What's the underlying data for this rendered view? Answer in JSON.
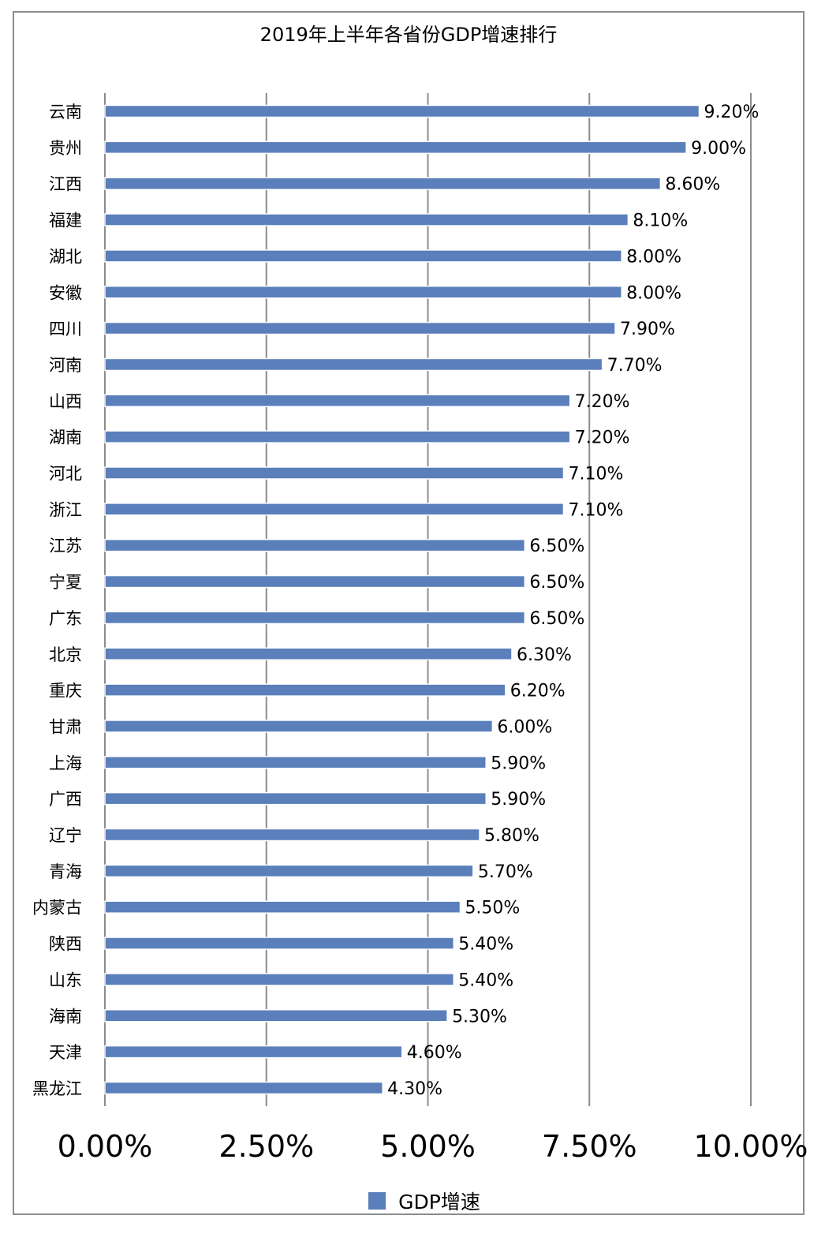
{
  "chart_data": {
    "type": "bar",
    "orientation": "horizontal",
    "title": "2019年上半年各省份GDP增速排行",
    "categories": [
      "云南",
      "贵州",
      "江西",
      "福建",
      "湖北",
      "安徽",
      "四川",
      "河南",
      "山西",
      "湖南",
      "河北",
      "浙江",
      "江苏",
      "宁夏",
      "广东",
      "北京",
      "重庆",
      "甘肃",
      "上海",
      "广西",
      "辽宁",
      "青海",
      "内蒙古",
      "陕西",
      "山东",
      "海南",
      "天津",
      "黑龙江"
    ],
    "series": [
      {
        "name": "GDP增速",
        "values": [
          9.2,
          9.0,
          8.6,
          8.1,
          8.0,
          8.0,
          7.9,
          7.7,
          7.2,
          7.2,
          7.1,
          7.1,
          6.5,
          6.5,
          6.5,
          6.3,
          6.2,
          6.0,
          5.9,
          5.9,
          5.8,
          5.7,
          5.5,
          5.4,
          5.4,
          5.3,
          4.6,
          4.3
        ],
        "data_labels": [
          "9.20%",
          "9.00%",
          "8.60%",
          "8.10%",
          "8.00%",
          "8.00%",
          "7.90%",
          "7.70%",
          "7.20%",
          "7.20%",
          "7.10%",
          "7.10%",
          "6.50%",
          "6.50%",
          "6.50%",
          "6.30%",
          "6.20%",
          "6.00%",
          "5.90%",
          "5.90%",
          "5.80%",
          "5.70%",
          "5.50%",
          "5.40%",
          "5.40%",
          "5.30%",
          "4.60%",
          "4.30%"
        ],
        "color": "#5a7fbb"
      }
    ],
    "x_ticks": [
      0,
      2.5,
      5,
      7.5,
      10
    ],
    "x_tick_labels": [
      "0.00%",
      "2.50%",
      "5.00%",
      "7.50%",
      "10.00%"
    ],
    "xlim": [
      0,
      10
    ],
    "grid": "vertical",
    "legend_position": "bottom"
  },
  "colors": {
    "bar": "#5a7fbb",
    "bar_edge": "#ffffff",
    "grid": "#8c8c8c",
    "frame": "#8c8c8c"
  }
}
